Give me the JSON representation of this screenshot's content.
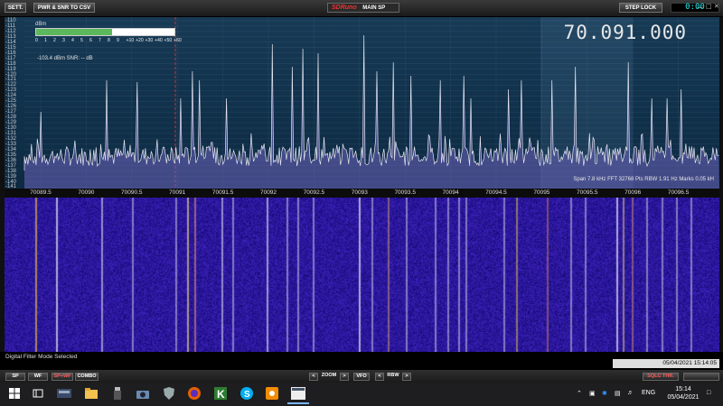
{
  "toolbar": {
    "sett_label": "SETT.",
    "pwr_snr_label": "PWR & SNR TO CSV",
    "logo": "SDRuno",
    "window_title": "MAIN SP",
    "step_lock_label": "STEP LOCK",
    "clock": "0:00"
  },
  "spectrum": {
    "frequency": "70.091.000",
    "meter_unit": "dBm",
    "meter_level": 0.55,
    "meter_scale": [
      "0",
      "1",
      "2",
      "3",
      "4",
      "5",
      "6",
      "7",
      "8",
      "9",
      "+10",
      "+20",
      "+30",
      "+40",
      "+50",
      "+60"
    ],
    "readout": "-103.4 dBm   SNR: -- dB",
    "y_labels": [
      "-110",
      "-111",
      "-112",
      "-113",
      "-114",
      "-115",
      "-116",
      "-117",
      "-118",
      "-119",
      "-120",
      "-121",
      "-122",
      "-123",
      "-124",
      "-125",
      "-126",
      "-127",
      "-128",
      "-129",
      "-130",
      "-131",
      "-132",
      "-133",
      "-134",
      "-135",
      "-136",
      "-137",
      "-138",
      "-139",
      "-140",
      "-141"
    ],
    "stats": "Span 7.8 kHz   FFT 32768 Pts   RBW 1.91 Hz   Marks 0.05 kH",
    "freq_ticks": [
      "70089.5",
      "70090",
      "70090.5",
      "70091",
      "70091.5",
      "70092",
      "70092.5",
      "70093",
      "70093.5",
      "70094",
      "70094.5",
      "70095",
      "70095.5",
      "70096",
      "70096.5"
    ]
  },
  "status": {
    "filter_mode": "Digital Filter Mode Selected",
    "datetime": "05/04/2021 15:14:05"
  },
  "controls": {
    "sp": "SP",
    "wf": "WF",
    "spwf": "SP+WF",
    "combo": "COMBO",
    "zoom": "ZOOM",
    "vfo": "VFO",
    "rbw": "RBW",
    "sqlc": "SQLC THR.",
    "zoom_prev": "<",
    "zoom_next": ">",
    "rbw_prev": "<",
    "rbw_next": ">"
  },
  "taskbar": {
    "lang": "ENG",
    "time": "15:14",
    "date": "05/04/2021",
    "icons": [
      "windows-start-icon",
      "task-view-icon",
      "sdr-app-icon",
      "file-explorer-icon",
      "usb-drive-icon",
      "camera-icon",
      "shield-icon",
      "firefox-icon",
      "k-app-icon",
      "skype-icon",
      "sketch-app-icon",
      "active-window-icon"
    ]
  },
  "colors": {
    "accent_red": "#ff5a5a",
    "meter_green": "#5cb85c",
    "clock_cyan": "#22eeee"
  }
}
